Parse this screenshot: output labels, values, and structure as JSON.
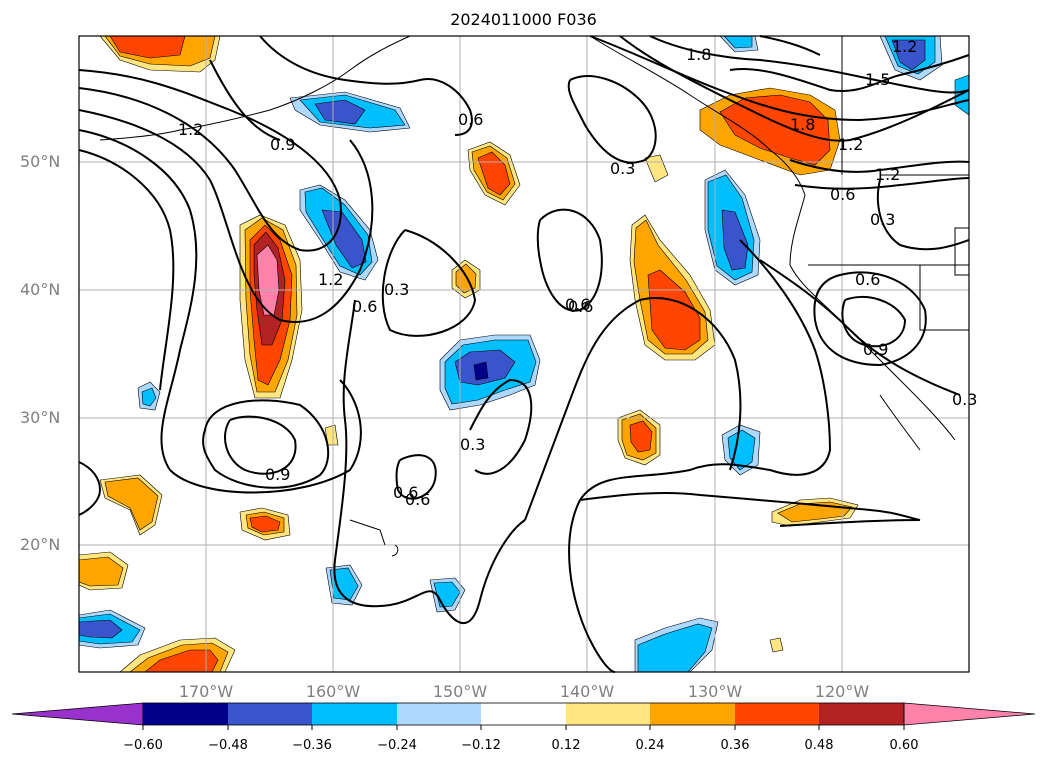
{
  "title": "2024011000 F036",
  "map": {
    "latitude_labels": [
      "50°N",
      "40°N",
      "30°N",
      "20°N"
    ],
    "longitude_labels": [
      "170°W",
      "160°W",
      "150°W",
      "140°W",
      "130°W",
      "120°W"
    ],
    "contour_labels": [
      "1.2",
      "0.9",
      "1.2",
      "0.6",
      "0.6",
      "0.3",
      "1.8",
      "1.5",
      "1.2",
      "1.8",
      "1.2",
      "0.6",
      "0.3",
      "1.2",
      "0.6",
      "0.3",
      "0.6",
      "0.6",
      "0.9",
      "0.3",
      "0.6",
      "0.6",
      "0.9",
      "0.3"
    ]
  },
  "colorbar": {
    "ticks": [
      "−0.60",
      "−0.48",
      "−0.36",
      "−0.24",
      "−0.12",
      "0.12",
      "0.24",
      "0.36",
      "0.48",
      "0.60"
    ],
    "colors": [
      "#9932cc",
      "#00008b",
      "#3a55cc",
      "#00bfff",
      "#add8ff",
      "#ffffff",
      "#ffe680",
      "#ffa500",
      "#ff4500",
      "#b22222",
      "#ff82ab"
    ]
  }
}
